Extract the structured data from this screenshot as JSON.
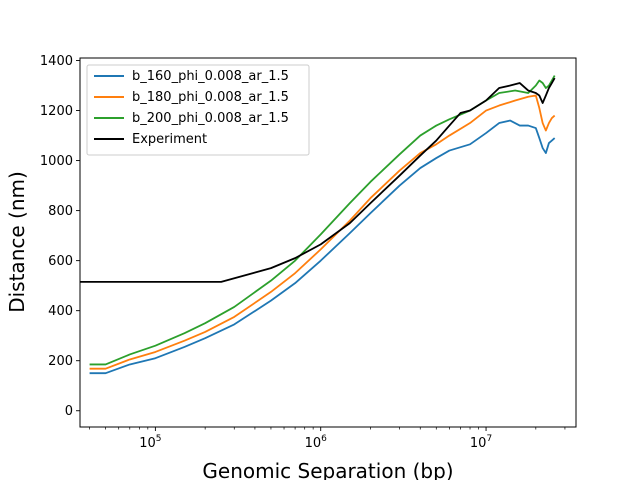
{
  "chart_data": {
    "type": "line",
    "title": "",
    "xlabel": "Genomic Separation (bp)",
    "ylabel": "Distance (nm)",
    "xscale": "log",
    "xlim": [
      35000,
      35000000
    ],
    "ylim": [
      -65,
      1410
    ],
    "x_ticks": [
      {
        "value": 100000,
        "base": "10",
        "exp": "5"
      },
      {
        "value": 1000000,
        "base": "10",
        "exp": "6"
      },
      {
        "value": 10000000,
        "base": "10",
        "exp": "7"
      }
    ],
    "y_ticks": [
      {
        "value": 0,
        "label": "0"
      },
      {
        "value": 200,
        "label": "200"
      },
      {
        "value": 400,
        "label": "400"
      },
      {
        "value": 600,
        "label": "600"
      },
      {
        "value": 800,
        "label": "800"
      },
      {
        "value": 1000,
        "label": "1000"
      },
      {
        "value": 1200,
        "label": "1200"
      },
      {
        "value": 1400,
        "label": "1400"
      }
    ],
    "grid": false,
    "legend_position": "top-left",
    "series": [
      {
        "name": "b_160_phi_0.008_ar_1.5",
        "color": "#1f77b4",
        "points": [
          [
            40000,
            150
          ],
          [
            50000,
            150
          ],
          [
            70000,
            185
          ],
          [
            100000,
            210
          ],
          [
            150000,
            255
          ],
          [
            200000,
            290
          ],
          [
            300000,
            345
          ],
          [
            500000,
            440
          ],
          [
            700000,
            510
          ],
          [
            1000000,
            600
          ],
          [
            1500000,
            710
          ],
          [
            2000000,
            790
          ],
          [
            3000000,
            900
          ],
          [
            4000000,
            970
          ],
          [
            5000000,
            1010
          ],
          [
            6000000,
            1040
          ],
          [
            8000000,
            1065
          ],
          [
            10000000,
            1110
          ],
          [
            12000000,
            1150
          ],
          [
            14000000,
            1160
          ],
          [
            16000000,
            1140
          ],
          [
            18000000,
            1140
          ],
          [
            20000000,
            1130
          ],
          [
            21000000,
            1090
          ],
          [
            22000000,
            1050
          ],
          [
            23000000,
            1030
          ],
          [
            24000000,
            1070
          ],
          [
            25000000,
            1080
          ],
          [
            26000000,
            1090
          ]
        ]
      },
      {
        "name": "b_180_phi_0.008_ar_1.5",
        "color": "#ff7f0e",
        "points": [
          [
            40000,
            168
          ],
          [
            50000,
            168
          ],
          [
            70000,
            205
          ],
          [
            100000,
            235
          ],
          [
            150000,
            280
          ],
          [
            200000,
            315
          ],
          [
            300000,
            375
          ],
          [
            500000,
            475
          ],
          [
            700000,
            550
          ],
          [
            1000000,
            645
          ],
          [
            1500000,
            760
          ],
          [
            2000000,
            850
          ],
          [
            3000000,
            960
          ],
          [
            4000000,
            1030
          ],
          [
            5000000,
            1065
          ],
          [
            6000000,
            1100
          ],
          [
            8000000,
            1150
          ],
          [
            10000000,
            1200
          ],
          [
            12000000,
            1220
          ],
          [
            15000000,
            1240
          ],
          [
            18000000,
            1255
          ],
          [
            20000000,
            1260
          ],
          [
            21000000,
            1210
          ],
          [
            22000000,
            1150
          ],
          [
            23000000,
            1120
          ],
          [
            24000000,
            1150
          ],
          [
            25000000,
            1170
          ],
          [
            26000000,
            1180
          ]
        ]
      },
      {
        "name": "b_200_phi_0.008_ar_1.5",
        "color": "#2ca02c",
        "points": [
          [
            40000,
            185
          ],
          [
            50000,
            185
          ],
          [
            70000,
            225
          ],
          [
            100000,
            260
          ],
          [
            150000,
            310
          ],
          [
            200000,
            350
          ],
          [
            300000,
            415
          ],
          [
            500000,
            520
          ],
          [
            700000,
            600
          ],
          [
            1000000,
            705
          ],
          [
            1500000,
            830
          ],
          [
            2000000,
            915
          ],
          [
            3000000,
            1025
          ],
          [
            4000000,
            1100
          ],
          [
            5000000,
            1140
          ],
          [
            6000000,
            1165
          ],
          [
            8000000,
            1200
          ],
          [
            10000000,
            1240
          ],
          [
            12000000,
            1270
          ],
          [
            15000000,
            1280
          ],
          [
            18000000,
            1270
          ],
          [
            20000000,
            1300
          ],
          [
            21000000,
            1320
          ],
          [
            22000000,
            1310
          ],
          [
            23000000,
            1290
          ],
          [
            24000000,
            1300
          ],
          [
            25000000,
            1320
          ],
          [
            26000000,
            1340
          ]
        ]
      },
      {
        "name": "Experiment",
        "color": "#000000",
        "points": [
          [
            35000,
            515
          ],
          [
            250000,
            515
          ],
          [
            500000,
            570
          ],
          [
            700000,
            610
          ],
          [
            1000000,
            665
          ],
          [
            1500000,
            750
          ],
          [
            2000000,
            830
          ],
          [
            3000000,
            940
          ],
          [
            4000000,
            1020
          ],
          [
            5000000,
            1080
          ],
          [
            6000000,
            1140
          ],
          [
            7000000,
            1190
          ],
          [
            8000000,
            1200
          ],
          [
            10000000,
            1240
          ],
          [
            12000000,
            1290
          ],
          [
            14000000,
            1300
          ],
          [
            16000000,
            1310
          ],
          [
            18000000,
            1280
          ],
          [
            20000000,
            1270
          ],
          [
            21000000,
            1260
          ],
          [
            22000000,
            1230
          ],
          [
            23000000,
            1260
          ],
          [
            24000000,
            1290
          ],
          [
            25000000,
            1310
          ],
          [
            26000000,
            1330
          ]
        ]
      }
    ]
  }
}
